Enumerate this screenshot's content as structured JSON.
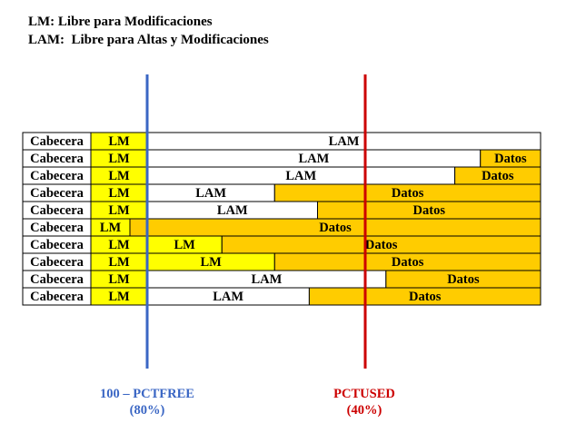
{
  "legend": {
    "lm": "LM: Libre para Modificaciones",
    "lam": "LAM:  Libre para Altas y Modificaciones"
  },
  "rows": [
    {
      "header": "Cabecera",
      "lm": "LM",
      "lm_width": "full",
      "lam": "LAM",
      "lam_fraction": 1.0,
      "datos": null,
      "datos_fraction": 0.0
    },
    {
      "header": "Cabecera",
      "lm": "LM",
      "lm_width": "full",
      "lam": "LAM",
      "lam_fraction": 0.847,
      "datos": "Datos",
      "datos_fraction": 0.153
    },
    {
      "header": "Cabecera",
      "lm": "LM",
      "lm_width": "full",
      "lam": "LAM",
      "lam_fraction": 0.782,
      "datos": "Datos",
      "datos_fraction": 0.218
    },
    {
      "header": "Cabecera",
      "lm": "LM",
      "lm_width": "full",
      "lam": "LAM",
      "lam_fraction": 0.324,
      "datos": "Datos",
      "datos_fraction": 0.676
    },
    {
      "header": "Cabecera",
      "lm": "LM",
      "lm_width": "full",
      "lam": "LAM",
      "lam_fraction": 0.433,
      "datos": "Datos",
      "datos_fraction": 0.567
    },
    {
      "header": "Cabecera",
      "lm": "LM",
      "lm_width": "reduced",
      "lam": null,
      "lam_fraction": 0.0,
      "datos": "Datos",
      "datos_fraction": 1.0
    },
    {
      "header": "Cabecera",
      "lm": "LM",
      "lm_width": "full",
      "lm_extra": "LM",
      "lm_extra_fraction": 0.19,
      "lam": null,
      "lam_fraction": 0.0,
      "datos": "Datos",
      "datos_fraction": 0.81
    },
    {
      "header": "Cabecera",
      "lm": "LM",
      "lm_width": "full",
      "lm_extra": "LM",
      "lm_extra_fraction": 0.324,
      "lam": null,
      "lam_fraction": 0.0,
      "datos": "Datos",
      "datos_fraction": 0.676
    },
    {
      "header": "Cabecera",
      "lm": "LM",
      "lm_width": "full",
      "lam": "LAM",
      "lam_fraction": 0.607,
      "datos": "Datos",
      "datos_fraction": 0.393
    },
    {
      "header": "Cabecera",
      "lm": "LM",
      "lm_width": "full",
      "lam": "LAM",
      "lam_fraction": 0.412,
      "datos": "Datos",
      "datos_fraction": 0.588
    }
  ],
  "markers": {
    "pctfree": {
      "label": "100 – PCTFREE",
      "value": "(80%)",
      "color": "#3a66c4"
    },
    "pctused": {
      "label": "PCTUSED",
      "value": "(40%)",
      "color": "#cc0000"
    }
  },
  "colors": {
    "header_fill": "#ffffff",
    "lm_fill": "#ffff00",
    "lam_fill": "#ffffff",
    "datos_fill": "#ffcc00",
    "border": "#000000"
  }
}
